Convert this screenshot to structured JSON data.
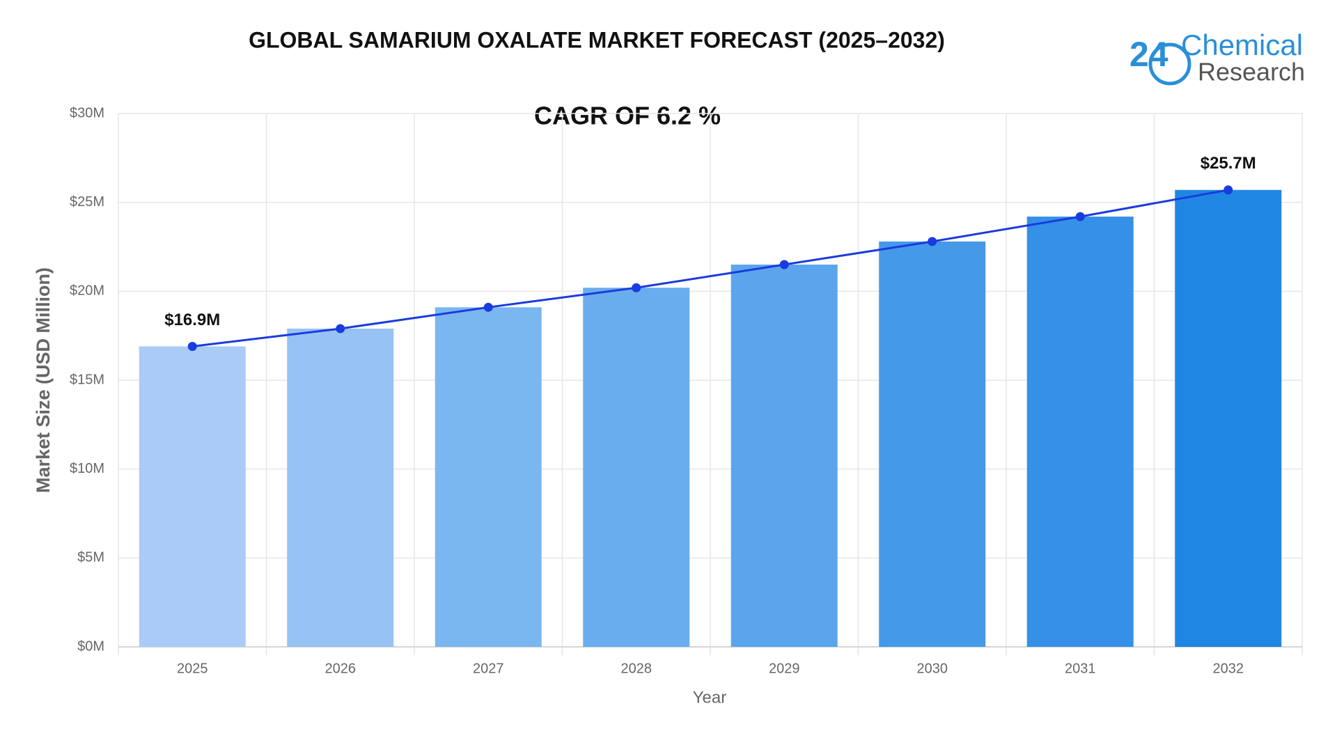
{
  "chart_data": {
    "type": "bar",
    "title": "GLOBAL SAMARIUM OXALATE MARKET FORECAST (2025–2032)",
    "subtitle": "CAGR OF 6.2 %",
    "x_label": "Year",
    "y_label": "Market Size (USD Million)",
    "categories": [
      "2025",
      "2026",
      "2027",
      "2028",
      "2029",
      "2030",
      "2031",
      "2032"
    ],
    "values": [
      16.9,
      17.9,
      19.1,
      20.2,
      21.5,
      22.8,
      24.2,
      25.7
    ],
    "value_labels": [
      "$16.9M",
      null,
      null,
      null,
      null,
      null,
      null,
      "$25.7M"
    ],
    "bar_colors": [
      "#a9cbf6",
      "#96c2f4",
      "#7ab7f0",
      "#6aadee",
      "#5aa5ec",
      "#4599e9",
      "#3590e7",
      "#1f86e4"
    ],
    "line_color": "#1a3be0",
    "ylim": [
      0,
      30
    ],
    "yticks": [
      {
        "value": 0,
        "label": "$0M"
      },
      {
        "value": 5,
        "label": "$5M"
      },
      {
        "value": 10,
        "label": "$10M"
      },
      {
        "value": 15,
        "label": "$15M"
      },
      {
        "value": 20,
        "label": "$20M"
      },
      {
        "value": 25,
        "label": "$25M"
      },
      {
        "value": 30,
        "label": "$30M"
      }
    ],
    "grid": true
  },
  "logo": {
    "number": "24",
    "line1": "Chemical",
    "line2": "Research"
  }
}
